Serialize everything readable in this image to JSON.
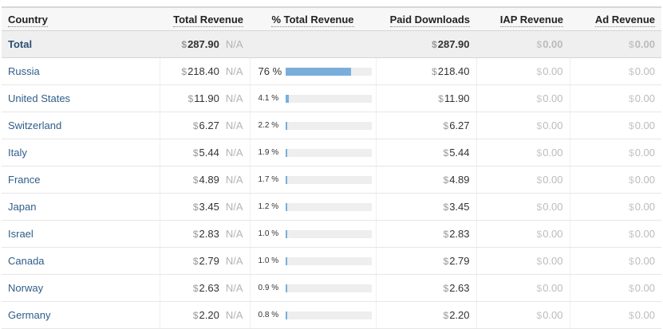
{
  "columns": {
    "country": "Country",
    "total_revenue": "Total Revenue",
    "pct_total_revenue": "% Total Revenue",
    "paid_downloads": "Paid Downloads",
    "iap_revenue": "IAP Revenue",
    "ad_revenue": "Ad Revenue"
  },
  "currency_symbol": "$",
  "na_label": "N/A",
  "total": {
    "country": "Total",
    "total_revenue": "287.90",
    "paid_downloads": "287.90",
    "iap_revenue": "0.00",
    "ad_revenue": "0.00"
  },
  "rows": [
    {
      "country": "Russia",
      "total_revenue": "218.40",
      "pct_label": "76",
      "pct_value": 76,
      "paid_downloads": "218.40",
      "iap_revenue": "0.00",
      "ad_revenue": "0.00"
    },
    {
      "country": "United States",
      "total_revenue": "11.90",
      "pct_label": "4.1",
      "pct_value": 4.1,
      "paid_downloads": "11.90",
      "iap_revenue": "0.00",
      "ad_revenue": "0.00"
    },
    {
      "country": "Switzerland",
      "total_revenue": "6.27",
      "pct_label": "2.2",
      "pct_value": 2.2,
      "paid_downloads": "6.27",
      "iap_revenue": "0.00",
      "ad_revenue": "0.00"
    },
    {
      "country": "Italy",
      "total_revenue": "5.44",
      "pct_label": "1.9",
      "pct_value": 1.9,
      "paid_downloads": "5.44",
      "iap_revenue": "0.00",
      "ad_revenue": "0.00"
    },
    {
      "country": "France",
      "total_revenue": "4.89",
      "pct_label": "1.7",
      "pct_value": 1.7,
      "paid_downloads": "4.89",
      "iap_revenue": "0.00",
      "ad_revenue": "0.00"
    },
    {
      "country": "Japan",
      "total_revenue": "3.45",
      "pct_label": "1.2",
      "pct_value": 1.2,
      "paid_downloads": "3.45",
      "iap_revenue": "0.00",
      "ad_revenue": "0.00"
    },
    {
      "country": "Israel",
      "total_revenue": "2.83",
      "pct_label": "1.0",
      "pct_value": 1.0,
      "paid_downloads": "2.83",
      "iap_revenue": "0.00",
      "ad_revenue": "0.00"
    },
    {
      "country": "Canada",
      "total_revenue": "2.79",
      "pct_label": "1.0",
      "pct_value": 1.0,
      "paid_downloads": "2.79",
      "iap_revenue": "0.00",
      "ad_revenue": "0.00"
    },
    {
      "country": "Norway",
      "total_revenue": "2.63",
      "pct_label": "0.9",
      "pct_value": 0.9,
      "paid_downloads": "2.63",
      "iap_revenue": "0.00",
      "ad_revenue": "0.00"
    },
    {
      "country": "Germany",
      "total_revenue": "2.20",
      "pct_label": "0.8",
      "pct_value": 0.8,
      "paid_downloads": "2.20",
      "iap_revenue": "0.00",
      "ad_revenue": "0.00"
    }
  ],
  "pct_unit": "%",
  "colors": {
    "bar_fill": "#79aedb",
    "bar_track": "#eeeeee",
    "country_link": "#2f5d8a"
  }
}
